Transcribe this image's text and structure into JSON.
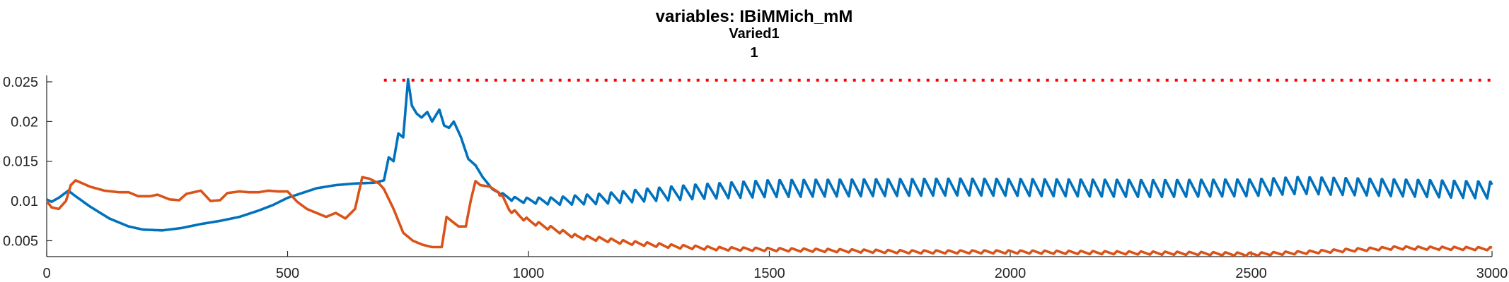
{
  "chart_data": {
    "type": "line",
    "title": [
      "variables: IBiMMich_mM",
      "Varied1",
      "1"
    ],
    "xlabel": "",
    "ylabel": "",
    "xlim": [
      0,
      3000
    ],
    "ylim": [
      0.003,
      0.0258
    ],
    "xticks": [
      0,
      500,
      1000,
      1500,
      2000,
      2500,
      3000
    ],
    "xtick_labels": [
      "0",
      "500",
      "1000",
      "1500",
      "2000",
      "2500",
      "3000"
    ],
    "yticks": [
      0.005,
      0.01,
      0.015,
      0.02,
      0.025
    ],
    "ytick_labels": [
      "0.005",
      "0.01",
      "0.015",
      "0.02",
      "0.025"
    ],
    "grid": false,
    "legend": "none",
    "threshold": {
      "y": 0.0252,
      "x_range": [
        700,
        3000
      ],
      "color": "#ff0000",
      "style": "dotted"
    },
    "series": [
      {
        "color": "#0072bd",
        "base": [
          [
            0,
            0.0102
          ],
          [
            10,
            0.0099
          ],
          [
            25,
            0.0104
          ],
          [
            45,
            0.0113
          ],
          [
            60,
            0.0106
          ],
          [
            90,
            0.0093
          ],
          [
            130,
            0.0078
          ],
          [
            170,
            0.0068
          ],
          [
            200,
            0.0064
          ],
          [
            240,
            0.0063
          ],
          [
            280,
            0.0066
          ],
          [
            320,
            0.0071
          ],
          [
            360,
            0.0075
          ],
          [
            400,
            0.008
          ],
          [
            440,
            0.0088
          ],
          [
            470,
            0.0095
          ],
          [
            500,
            0.0104
          ],
          [
            530,
            0.011
          ],
          [
            560,
            0.0116
          ],
          [
            600,
            0.012
          ],
          [
            640,
            0.0122
          ],
          [
            680,
            0.0123
          ],
          [
            700,
            0.0126
          ],
          [
            710,
            0.0155
          ],
          [
            720,
            0.015
          ],
          [
            730,
            0.0185
          ],
          [
            740,
            0.018
          ],
          [
            750,
            0.0253
          ],
          [
            758,
            0.022
          ],
          [
            768,
            0.021
          ],
          [
            778,
            0.0205
          ],
          [
            790,
            0.0212
          ],
          [
            800,
            0.02
          ],
          [
            815,
            0.0215
          ],
          [
            825,
            0.0195
          ],
          [
            835,
            0.0192
          ],
          [
            845,
            0.02
          ],
          [
            860,
            0.018
          ],
          [
            875,
            0.0153
          ],
          [
            890,
            0.0145
          ],
          [
            905,
            0.013
          ],
          [
            925,
            0.0115
          ],
          [
            945,
            0.0108
          ],
          [
            965,
            0.0103
          ],
          [
            985,
            0.0101
          ],
          [
            1050,
            0.01
          ],
          [
            1150,
            0.0103
          ],
          [
            1250,
            0.0108
          ],
          [
            1350,
            0.0112
          ],
          [
            1500,
            0.0116
          ],
          [
            1700,
            0.0117
          ],
          [
            1900,
            0.0118
          ],
          [
            2100,
            0.0117
          ],
          [
            2300,
            0.0116
          ],
          [
            2500,
            0.0117
          ],
          [
            2600,
            0.012
          ],
          [
            2800,
            0.0117
          ],
          [
            3000,
            0.0114
          ]
        ],
        "oscillation": {
          "period": 25,
          "start": 940,
          "amplitude": [
            [
              940,
              0.0004
            ],
            [
              1100,
              0.0012
            ],
            [
              1300,
              0.0018
            ],
            [
              1500,
              0.0022
            ],
            [
              3000,
              0.0022
            ]
          ]
        }
      },
      {
        "color": "#d95319",
        "base": [
          [
            0,
            0.01
          ],
          [
            10,
            0.0092
          ],
          [
            25,
            0.009
          ],
          [
            40,
            0.01
          ],
          [
            50,
            0.012
          ],
          [
            60,
            0.0126
          ],
          [
            90,
            0.0118
          ],
          [
            120,
            0.0113
          ],
          [
            150,
            0.0111
          ],
          [
            170,
            0.0111
          ],
          [
            190,
            0.0106
          ],
          [
            215,
            0.0106
          ],
          [
            230,
            0.0108
          ],
          [
            255,
            0.0102
          ],
          [
            275,
            0.0101
          ],
          [
            290,
            0.0109
          ],
          [
            320,
            0.0113
          ],
          [
            340,
            0.01
          ],
          [
            360,
            0.0101
          ],
          [
            375,
            0.011
          ],
          [
            400,
            0.0112
          ],
          [
            420,
            0.0111
          ],
          [
            440,
            0.0111
          ],
          [
            460,
            0.0113
          ],
          [
            480,
            0.0112
          ],
          [
            500,
            0.0112
          ],
          [
            520,
            0.0099
          ],
          [
            540,
            0.009
          ],
          [
            560,
            0.0085
          ],
          [
            580,
            0.008
          ],
          [
            600,
            0.0085
          ],
          [
            620,
            0.0078
          ],
          [
            640,
            0.009
          ],
          [
            655,
            0.013
          ],
          [
            670,
            0.0128
          ],
          [
            690,
            0.0122
          ],
          [
            700,
            0.0115
          ],
          [
            720,
            0.009
          ],
          [
            740,
            0.006
          ],
          [
            760,
            0.005
          ],
          [
            780,
            0.0045
          ],
          [
            800,
            0.0042
          ],
          [
            820,
            0.0042
          ],
          [
            830,
            0.008
          ],
          [
            840,
            0.0075
          ],
          [
            855,
            0.0068
          ],
          [
            870,
            0.0068
          ],
          [
            880,
            0.01
          ],
          [
            890,
            0.0125
          ],
          [
            900,
            0.012
          ],
          [
            920,
            0.0118
          ],
          [
            940,
            0.011
          ],
          [
            960,
            0.009
          ],
          [
            980,
            0.0082
          ],
          [
            1000,
            0.0075
          ],
          [
            1050,
            0.0065
          ],
          [
            1100,
            0.0055
          ],
          [
            1150,
            0.0052
          ],
          [
            1200,
            0.0048
          ],
          [
            1300,
            0.0043
          ],
          [
            1400,
            0.004
          ],
          [
            1600,
            0.0038
          ],
          [
            1800,
            0.0036
          ],
          [
            2000,
            0.0036
          ],
          [
            2200,
            0.0035
          ],
          [
            2400,
            0.0034
          ],
          [
            2500,
            0.0033
          ],
          [
            2600,
            0.0035
          ],
          [
            2800,
            0.0041
          ],
          [
            3000,
            0.004
          ]
        ],
        "oscillation": {
          "period": 25,
          "start": 940,
          "amplitude": [
            [
              940,
              0.0006
            ],
            [
              1200,
              0.0005
            ],
            [
              1500,
              0.0004
            ],
            [
              3000,
              0.0004
            ]
          ]
        }
      }
    ]
  }
}
